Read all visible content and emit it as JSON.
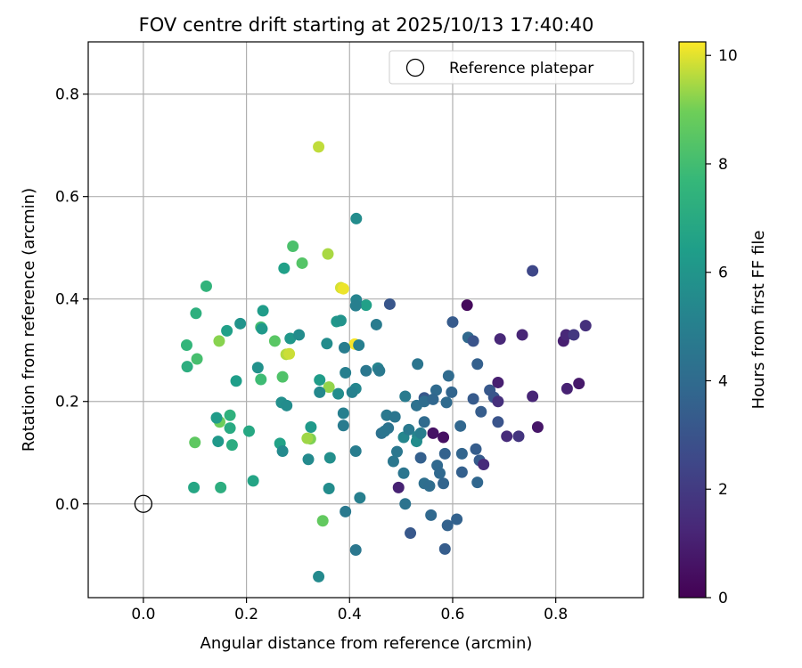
{
  "chart_data": {
    "type": "scatter",
    "title": "FOV centre drift starting at 2025/10/13 17:40:40",
    "xlabel": "Angular distance from reference (arcmin)",
    "ylabel": "Rotation from reference (arcmin)",
    "xlim": [
      -0.107,
      0.97
    ],
    "ylim": [
      -0.183,
      0.902
    ],
    "xticks": [
      0.0,
      0.2,
      0.4,
      0.6,
      0.8
    ],
    "xtick_labels": [
      "0.0",
      "0.2",
      "0.4",
      "0.6",
      "0.8"
    ],
    "yticks": [
      0.0,
      0.2,
      0.4,
      0.6,
      0.8
    ],
    "ytick_labels": [
      "0.0",
      "0.2",
      "0.4",
      "0.6",
      "0.8"
    ],
    "grid": true,
    "colormap": "viridis",
    "colorbar": {
      "label": "Hours from first FF file",
      "range": [
        0,
        10.25
      ],
      "ticks": [
        0,
        2,
        4,
        6,
        8,
        10
      ],
      "tick_labels": [
        "0",
        "2",
        "4",
        "6",
        "8",
        "10"
      ]
    },
    "legend": {
      "position": "top-right",
      "entries": [
        "Reference platepar"
      ]
    },
    "reference": {
      "x": 0.0,
      "y": 0.0,
      "label": "Reference platepar"
    },
    "points": [
      {
        "x": 0.34,
        "y": 0.697,
        "h": 9.7
      },
      {
        "x": 0.358,
        "y": 0.488,
        "h": 9.5
      },
      {
        "x": 0.383,
        "y": 0.422,
        "h": 9.9
      },
      {
        "x": 0.388,
        "y": 0.42,
        "h": 10.1
      },
      {
        "x": 0.41,
        "y": 0.312,
        "h": 10.2
      },
      {
        "x": 0.36,
        "y": 0.228,
        "h": 9.3
      },
      {
        "x": 0.277,
        "y": 0.292,
        "h": 9.6
      },
      {
        "x": 0.283,
        "y": 0.293,
        "h": 9.8
      },
      {
        "x": 0.324,
        "y": 0.127,
        "h": 9.1
      },
      {
        "x": 0.318,
        "y": 0.128,
        "h": 9.4
      },
      {
        "x": 0.348,
        "y": -0.033,
        "h": 8.7
      },
      {
        "x": 0.147,
        "y": 0.318,
        "h": 9.2
      },
      {
        "x": 0.148,
        "y": 0.16,
        "h": 8.9
      },
      {
        "x": 0.1,
        "y": 0.12,
        "h": 8.6
      },
      {
        "x": 0.29,
        "y": 0.503,
        "h": 8.2
      },
      {
        "x": 0.308,
        "y": 0.47,
        "h": 8.4
      },
      {
        "x": 0.255,
        "y": 0.318,
        "h": 8.5
      },
      {
        "x": 0.27,
        "y": 0.248,
        "h": 8.3
      },
      {
        "x": 0.228,
        "y": 0.345,
        "h": 8.0
      },
      {
        "x": 0.228,
        "y": 0.243,
        "h": 7.9
      },
      {
        "x": 0.104,
        "y": 0.283,
        "h": 8.1
      },
      {
        "x": 0.084,
        "y": 0.31,
        "h": 7.6
      },
      {
        "x": 0.122,
        "y": 0.425,
        "h": 7.5
      },
      {
        "x": 0.102,
        "y": 0.372,
        "h": 7.3
      },
      {
        "x": 0.085,
        "y": 0.268,
        "h": 7.2
      },
      {
        "x": 0.168,
        "y": 0.173,
        "h": 7.4
      },
      {
        "x": 0.168,
        "y": 0.148,
        "h": 7.0
      },
      {
        "x": 0.172,
        "y": 0.115,
        "h": 7.1
      },
      {
        "x": 0.205,
        "y": 0.142,
        "h": 6.9
      },
      {
        "x": 0.15,
        "y": 0.032,
        "h": 7.2
      },
      {
        "x": 0.098,
        "y": 0.032,
        "h": 6.8
      },
      {
        "x": 0.213,
        "y": 0.045,
        "h": 6.7
      },
      {
        "x": 0.162,
        "y": 0.338,
        "h": 6.5
      },
      {
        "x": 0.18,
        "y": 0.24,
        "h": 6.4
      },
      {
        "x": 0.145,
        "y": 0.122,
        "h": 6.2
      },
      {
        "x": 0.142,
        "y": 0.168,
        "h": 6.3
      },
      {
        "x": 0.265,
        "y": 0.118,
        "h": 6.6
      },
      {
        "x": 0.273,
        "y": 0.46,
        "h": 6.5
      },
      {
        "x": 0.232,
        "y": 0.377,
        "h": 6.3
      },
      {
        "x": 0.188,
        "y": 0.352,
        "h": 5.9
      },
      {
        "x": 0.222,
        "y": 0.266,
        "h": 5.8
      },
      {
        "x": 0.23,
        "y": 0.342,
        "h": 6.2
      },
      {
        "x": 0.285,
        "y": 0.323,
        "h": 6.1
      },
      {
        "x": 0.268,
        "y": 0.198,
        "h": 5.7
      },
      {
        "x": 0.278,
        "y": 0.192,
        "h": 5.6
      },
      {
        "x": 0.27,
        "y": 0.103,
        "h": 5.5
      },
      {
        "x": 0.325,
        "y": 0.15,
        "h": 6.2
      },
      {
        "x": 0.32,
        "y": 0.087,
        "h": 5.5
      },
      {
        "x": 0.302,
        "y": 0.33,
        "h": 5.6
      },
      {
        "x": 0.342,
        "y": 0.242,
        "h": 6.3
      },
      {
        "x": 0.342,
        "y": 0.218,
        "h": 5.4
      },
      {
        "x": 0.356,
        "y": 0.313,
        "h": 5.6
      },
      {
        "x": 0.375,
        "y": 0.356,
        "h": 6.1
      },
      {
        "x": 0.383,
        "y": 0.358,
        "h": 5.9
      },
      {
        "x": 0.378,
        "y": 0.215,
        "h": 5.6
      },
      {
        "x": 0.362,
        "y": 0.09,
        "h": 5.7
      },
      {
        "x": 0.36,
        "y": 0.03,
        "h": 5.6
      },
      {
        "x": 0.34,
        "y": -0.142,
        "h": 5.5
      },
      {
        "x": 0.413,
        "y": 0.557,
        "h": 5.6
      },
      {
        "x": 0.432,
        "y": 0.388,
        "h": 6.5
      },
      {
        "x": 0.413,
        "y": 0.398,
        "h": 5.2
      },
      {
        "x": 0.412,
        "y": 0.387,
        "h": 5.0
      },
      {
        "x": 0.418,
        "y": 0.31,
        "h": 5.0
      },
      {
        "x": 0.39,
        "y": 0.305,
        "h": 4.9
      },
      {
        "x": 0.392,
        "y": 0.256,
        "h": 5.0
      },
      {
        "x": 0.412,
        "y": 0.225,
        "h": 5.3
      },
      {
        "x": 0.405,
        "y": 0.218,
        "h": 5.1
      },
      {
        "x": 0.388,
        "y": 0.177,
        "h": 5.0
      },
      {
        "x": 0.388,
        "y": 0.153,
        "h": 4.8
      },
      {
        "x": 0.412,
        "y": 0.103,
        "h": 4.9
      },
      {
        "x": 0.42,
        "y": 0.012,
        "h": 5.0
      },
      {
        "x": 0.392,
        "y": -0.015,
        "h": 4.7
      },
      {
        "x": 0.412,
        "y": -0.09,
        "h": 4.6
      },
      {
        "x": 0.452,
        "y": 0.35,
        "h": 4.8
      },
      {
        "x": 0.432,
        "y": 0.26,
        "h": 4.6
      },
      {
        "x": 0.455,
        "y": 0.265,
        "h": 5.2
      },
      {
        "x": 0.458,
        "y": 0.26,
        "h": 4.7
      },
      {
        "x": 0.478,
        "y": 0.39,
        "h": 3.1
      },
      {
        "x": 0.472,
        "y": 0.173,
        "h": 4.7
      },
      {
        "x": 0.488,
        "y": 0.17,
        "h": 4.5
      },
      {
        "x": 0.475,
        "y": 0.148,
        "h": 4.4
      },
      {
        "x": 0.462,
        "y": 0.138,
        "h": 4.3
      },
      {
        "x": 0.468,
        "y": 0.142,
        "h": 4.5
      },
      {
        "x": 0.492,
        "y": 0.102,
        "h": 4.6
      },
      {
        "x": 0.485,
        "y": 0.083,
        "h": 4.6
      },
      {
        "x": 0.505,
        "y": 0.13,
        "h": 5.3
      },
      {
        "x": 0.508,
        "y": 0.21,
        "h": 4.8
      },
      {
        "x": 0.515,
        "y": 0.145,
        "h": 4.7
      },
      {
        "x": 0.505,
        "y": 0.06,
        "h": 4.5
      },
      {
        "x": 0.508,
        "y": 0.0,
        "h": 4.4
      },
      {
        "x": 0.495,
        "y": 0.032,
        "h": 1.1
      },
      {
        "x": 0.518,
        "y": -0.057,
        "h": 3.2
      },
      {
        "x": 0.532,
        "y": 0.273,
        "h": 4.5
      },
      {
        "x": 0.53,
        "y": 0.192,
        "h": 4.3
      },
      {
        "x": 0.532,
        "y": 0.132,
        "h": 5.2
      },
      {
        "x": 0.53,
        "y": 0.122,
        "h": 5.6
      },
      {
        "x": 0.538,
        "y": 0.138,
        "h": 4.9
      },
      {
        "x": 0.538,
        "y": 0.09,
        "h": 3.5
      },
      {
        "x": 0.545,
        "y": 0.207,
        "h": 3.2
      },
      {
        "x": 0.545,
        "y": 0.2,
        "h": 4.1
      },
      {
        "x": 0.545,
        "y": 0.16,
        "h": 4.0
      },
      {
        "x": 0.545,
        "y": 0.04,
        "h": 4.2
      },
      {
        "x": 0.555,
        "y": 0.035,
        "h": 4.1
      },
      {
        "x": 0.558,
        "y": -0.022,
        "h": 3.9
      },
      {
        "x": 0.562,
        "y": 0.138,
        "h": 0.6
      },
      {
        "x": 0.57,
        "y": 0.075,
        "h": 3.9
      },
      {
        "x": 0.568,
        "y": 0.222,
        "h": 4.0
      },
      {
        "x": 0.562,
        "y": 0.204,
        "h": 3.8
      },
      {
        "x": 0.575,
        "y": 0.06,
        "h": 3.9
      },
      {
        "x": 0.582,
        "y": 0.13,
        "h": 0.5
      },
      {
        "x": 0.582,
        "y": 0.04,
        "h": 3.7
      },
      {
        "x": 0.585,
        "y": 0.098,
        "h": 3.6
      },
      {
        "x": 0.585,
        "y": -0.088,
        "h": 3.4
      },
      {
        "x": 0.588,
        "y": 0.198,
        "h": 4.0
      },
      {
        "x": 0.592,
        "y": 0.25,
        "h": 4.0
      },
      {
        "x": 0.598,
        "y": 0.218,
        "h": 3.7
      },
      {
        "x": 0.59,
        "y": -0.042,
        "h": 3.6
      },
      {
        "x": 0.6,
        "y": 0.355,
        "h": 3.3
      },
      {
        "x": 0.608,
        "y": -0.03,
        "h": 3.6
      },
      {
        "x": 0.615,
        "y": 0.152,
        "h": 3.8
      },
      {
        "x": 0.618,
        "y": 0.098,
        "h": 3.7
      },
      {
        "x": 0.618,
        "y": 0.062,
        "h": 3.5
      },
      {
        "x": 0.628,
        "y": 0.388,
        "h": 0.3
      },
      {
        "x": 0.63,
        "y": 0.325,
        "h": 3.9
      },
      {
        "x": 0.64,
        "y": 0.318,
        "h": 3.0
      },
      {
        "x": 0.64,
        "y": 0.205,
        "h": 3.3
      },
      {
        "x": 0.645,
        "y": 0.107,
        "h": 3.4
      },
      {
        "x": 0.648,
        "y": 0.042,
        "h": 3.8
      },
      {
        "x": 0.648,
        "y": 0.273,
        "h": 3.5
      },
      {
        "x": 0.652,
        "y": 0.085,
        "h": 3.3
      },
      {
        "x": 0.655,
        "y": 0.18,
        "h": 3.4
      },
      {
        "x": 0.66,
        "y": 0.077,
        "h": 1.4
      },
      {
        "x": 0.672,
        "y": 0.222,
        "h": 3.2
      },
      {
        "x": 0.68,
        "y": 0.208,
        "h": 3.1
      },
      {
        "x": 0.688,
        "y": 0.237,
        "h": 1.0
      },
      {
        "x": 0.688,
        "y": 0.2,
        "h": 1.6
      },
      {
        "x": 0.688,
        "y": 0.16,
        "h": 3.0
      },
      {
        "x": 0.692,
        "y": 0.322,
        "h": 1.3
      },
      {
        "x": 0.705,
        "y": 0.132,
        "h": 1.4
      },
      {
        "x": 0.728,
        "y": 0.132,
        "h": 1.8
      },
      {
        "x": 0.735,
        "y": 0.33,
        "h": 1.2
      },
      {
        "x": 0.755,
        "y": 0.455,
        "h": 2.5
      },
      {
        "x": 0.755,
        "y": 0.21,
        "h": 1.2
      },
      {
        "x": 0.765,
        "y": 0.15,
        "h": 0.7
      },
      {
        "x": 0.815,
        "y": 0.318,
        "h": 1.0
      },
      {
        "x": 0.82,
        "y": 0.33,
        "h": 1.3
      },
      {
        "x": 0.822,
        "y": 0.225,
        "h": 1.1
      },
      {
        "x": 0.835,
        "y": 0.33,
        "h": 1.9
      },
      {
        "x": 0.845,
        "y": 0.235,
        "h": 0.8
      },
      {
        "x": 0.858,
        "y": 0.348,
        "h": 1.6
      }
    ]
  }
}
